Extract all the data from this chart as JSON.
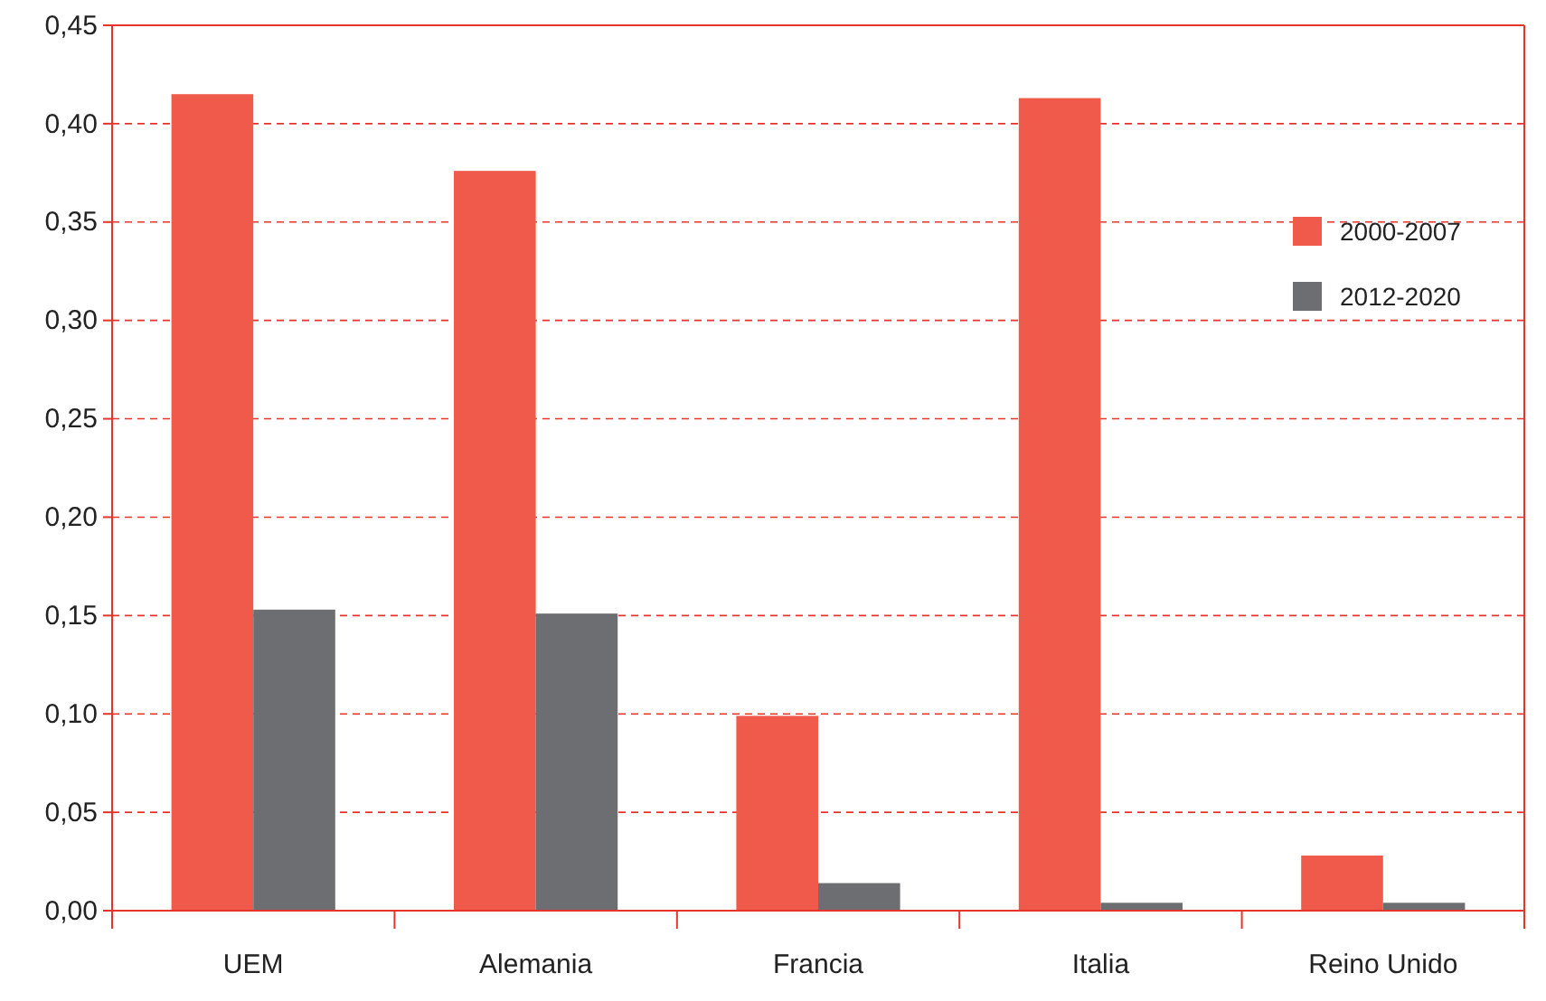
{
  "chart_data": {
    "type": "bar",
    "categories": [
      "UEM",
      "Alemania",
      "Francia",
      "Italia",
      "Reino Unido"
    ],
    "series": [
      {
        "name": "2000-2007",
        "color": "#ef5a4b",
        "values": [
          0.415,
          0.376,
          0.099,
          0.413,
          0.028
        ]
      },
      {
        "name": "2012-2020",
        "color": "#6d6e71",
        "values": [
          0.153,
          0.151,
          0.014,
          0.004,
          0.004
        ]
      }
    ],
    "ylim": [
      0,
      0.45
    ],
    "yticks": [
      {
        "value": 0,
        "label": "0,00"
      },
      {
        "value": 0.05,
        "label": "0,05"
      },
      {
        "value": 0.1,
        "label": "0,10"
      },
      {
        "value": 0.15,
        "label": "0,15"
      },
      {
        "value": 0.2,
        "label": "0,20"
      },
      {
        "value": 0.25,
        "label": "0,25"
      },
      {
        "value": 0.3,
        "label": "0,30"
      },
      {
        "value": 0.35,
        "label": "0,35"
      },
      {
        "value": 0.4,
        "label": "0,40"
      },
      {
        "value": 0.45,
        "label": "0,45"
      }
    ],
    "grid": "y",
    "legend": "right"
  }
}
